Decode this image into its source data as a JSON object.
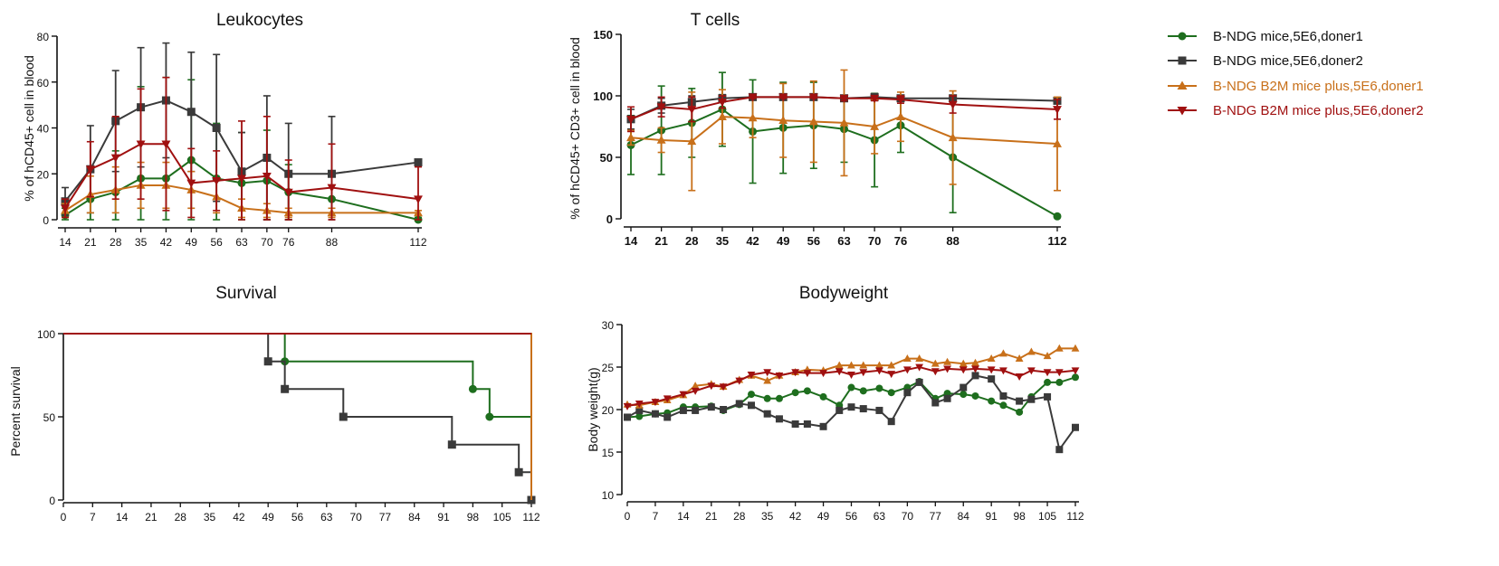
{
  "colors": {
    "green": "#1e6e1e",
    "gray": "#3a3a3a",
    "orange": "#c8701a",
    "red": "#a01010"
  },
  "legend": [
    {
      "label": "B-NDG mice,5E6,doner1",
      "color": "#1e6e1e",
      "marker": "circle",
      "text_color": "#111111"
    },
    {
      "label": "B-NDG mice,5E6,doner2",
      "color": "#3a3a3a",
      "marker": "square",
      "text_color": "#111111"
    },
    {
      "label": "B-NDG B2M mice plus,5E6,doner1",
      "color": "#c8701a",
      "marker": "triangle-up",
      "text_color": "#c8701a"
    },
    {
      "label": "B-NDG B2M mice plus,5E6,doner2",
      "color": "#a01010",
      "marker": "triangle-down",
      "text_color": "#a01010"
    }
  ],
  "chart_data": [
    {
      "type": "line",
      "title": "Leukocytes",
      "ylabel": "% of  hCD45+ cell in blood",
      "xlabel": "",
      "x_ticks": [
        14,
        21,
        28,
        35,
        42,
        49,
        56,
        63,
        70,
        76,
        88,
        112
      ],
      "ylim": [
        0,
        80
      ],
      "y_ticks": [
        0,
        20,
        40,
        60,
        80
      ],
      "series": [
        {
          "color": "#1e6e1e",
          "marker": "circle",
          "x": [
            14,
            21,
            28,
            35,
            42,
            49,
            56,
            63,
            70,
            76,
            88,
            112
          ],
          "values": [
            2,
            9,
            12,
            18,
            18,
            26,
            18,
            16,
            17,
            12,
            9,
            0
          ],
          "error": [
            3,
            12,
            18,
            40,
            44,
            35,
            24,
            22,
            22,
            12,
            6,
            1
          ]
        },
        {
          "color": "#3a3a3a",
          "marker": "square",
          "x": [
            14,
            21,
            28,
            35,
            42,
            49,
            56,
            63,
            70,
            76,
            88,
            112
          ],
          "values": [
            8,
            22,
            43,
            49,
            52,
            47,
            40,
            21,
            27,
            20,
            20,
            25
          ],
          "error": [
            6,
            19,
            22,
            26,
            25,
            26,
            32,
            17,
            27,
            22,
            25,
            1
          ]
        },
        {
          "color": "#c8701a",
          "marker": "triangle-up",
          "x": [
            14,
            21,
            28,
            35,
            42,
            49,
            56,
            63,
            70,
            76,
            88,
            112
          ],
          "values": [
            4,
            11,
            13,
            15,
            15,
            13,
            10,
            5,
            4,
            3,
            3,
            3
          ],
          "error": [
            3,
            8,
            10,
            10,
            10,
            8,
            7,
            4,
            3,
            2,
            2,
            1
          ]
        },
        {
          "color": "#a01010",
          "marker": "triangle-down",
          "x": [
            14,
            21,
            28,
            35,
            42,
            49,
            56,
            63,
            70,
            76,
            88,
            112
          ],
          "values": [
            5,
            22,
            27,
            33,
            33,
            16,
            17,
            18,
            19,
            12,
            14,
            9
          ],
          "error": [
            4,
            12,
            18,
            24,
            29,
            15,
            13,
            25,
            26,
            14,
            19,
            14
          ]
        }
      ]
    },
    {
      "type": "line",
      "title": "T cells",
      "ylabel": "% of hCD45+ CD3+ cell in blood",
      "xlabel": "",
      "x_ticks": [
        14,
        21,
        28,
        35,
        42,
        49,
        56,
        63,
        70,
        76,
        88,
        112
      ],
      "ylim": [
        0,
        150
      ],
      "y_ticks": [
        0,
        50,
        100,
        150
      ],
      "series": [
        {
          "color": "#1e6e1e",
          "marker": "circle",
          "x": [
            14,
            21,
            28,
            35,
            42,
            49,
            56,
            63,
            70,
            76,
            88,
            112
          ],
          "values": [
            60,
            72,
            78,
            89,
            71,
            74,
            76,
            73,
            64,
            76,
            50,
            2
          ],
          "error": [
            24,
            36,
            28,
            30,
            42,
            37,
            35,
            27,
            38,
            22,
            45,
            1
          ]
        },
        {
          "color": "#3a3a3a",
          "marker": "square",
          "x": [
            14,
            21,
            28,
            35,
            42,
            49,
            56,
            63,
            70,
            76,
            88,
            112
          ],
          "values": [
            81,
            92,
            95,
            98,
            99,
            99,
            99,
            98,
            99,
            98,
            98,
            96
          ],
          "error": [
            8,
            6,
            5,
            3,
            1,
            1,
            1,
            2,
            1,
            1,
            2,
            2
          ]
        },
        {
          "color": "#c8701a",
          "marker": "triangle-up",
          "x": [
            14,
            21,
            28,
            35,
            42,
            49,
            56,
            63,
            70,
            76,
            88,
            112
          ],
          "values": [
            66,
            64,
            63,
            83,
            82,
            80,
            79,
            78,
            75,
            83,
            66,
            61
          ],
          "error": [
            6,
            10,
            40,
            22,
            16,
            30,
            33,
            43,
            22,
            20,
            38,
            38
          ]
        },
        {
          "color": "#a01010",
          "marker": "triangle-down",
          "x": [
            14,
            21,
            28,
            35,
            42,
            49,
            56,
            63,
            70,
            76,
            88,
            112
          ],
          "values": [
            81,
            91,
            89,
            95,
            99,
            99,
            99,
            98,
            98,
            97,
            93,
            89
          ],
          "error": [
            10,
            8,
            10,
            5,
            1,
            1,
            1,
            2,
            2,
            3,
            7,
            8
          ]
        }
      ]
    },
    {
      "type": "line",
      "subtype": "step",
      "title": "Survival",
      "ylabel": "Percent survival",
      "xlabel": "",
      "x_ticks": [
        0,
        7,
        14,
        21,
        28,
        35,
        42,
        49,
        56,
        63,
        70,
        77,
        84,
        91,
        98,
        105,
        112
      ],
      "xlim": [
        0,
        112
      ],
      "ylim": [
        0,
        100
      ],
      "y_ticks": [
        0,
        50,
        100
      ],
      "series": [
        {
          "color": "#1e6e1e",
          "marker": "circle",
          "steps": [
            [
              0,
              100
            ],
            [
              53,
              83.3
            ],
            [
              98,
              66.7
            ],
            [
              102,
              50
            ],
            [
              112,
              0
            ]
          ]
        },
        {
          "color": "#3a3a3a",
          "marker": "square",
          "steps": [
            [
              0,
              100
            ],
            [
              49,
              83.3
            ],
            [
              53,
              66.7
            ],
            [
              67,
              50
            ],
            [
              93,
              33.3
            ],
            [
              109,
              16.7
            ],
            [
              112,
              0
            ]
          ]
        },
        {
          "color": "#c8701a",
          "marker": "triangle-up",
          "steps": [
            [
              0,
              100
            ],
            [
              112,
              0
            ]
          ]
        },
        {
          "color": "#a01010",
          "marker": "triangle-down",
          "steps": [
            [
              0,
              100
            ],
            [
              112,
              100
            ]
          ]
        }
      ]
    },
    {
      "type": "line",
      "title": "Bodyweight",
      "ylabel": "Body weight(g)",
      "xlabel": "",
      "x_ticks": [
        0,
        7,
        14,
        21,
        28,
        35,
        42,
        49,
        56,
        63,
        70,
        77,
        84,
        91,
        98,
        105,
        112
      ],
      "xlim": [
        0,
        112
      ],
      "ylim": [
        10,
        30
      ],
      "y_ticks": [
        10,
        15,
        20,
        25,
        30
      ],
      "series": [
        {
          "color": "#1e6e1e",
          "marker": "circle",
          "x": [
            0,
            3,
            7,
            10,
            14,
            17,
            21,
            24,
            28,
            31,
            35,
            38,
            42,
            45,
            49,
            53,
            56,
            59,
            63,
            66,
            70,
            73,
            77,
            80,
            84,
            87,
            91,
            94,
            98,
            101,
            105,
            108,
            112
          ],
          "values": [
            19.1,
            19.2,
            19.5,
            19.6,
            20.3,
            20.3,
            20.4,
            19.9,
            20.6,
            21.8,
            21.3,
            21.3,
            22.0,
            22.2,
            21.5,
            20.5,
            22.6,
            22.2,
            22.5,
            22.0,
            22.6,
            23.3,
            21.3,
            21.9,
            21.8,
            21.6,
            21.0,
            20.5,
            19.7,
            21.5,
            23.2,
            23.2,
            23.8
          ]
        },
        {
          "color": "#3a3a3a",
          "marker": "square",
          "x": [
            0,
            3,
            7,
            10,
            14,
            17,
            21,
            24,
            28,
            31,
            35,
            38,
            42,
            45,
            49,
            53,
            56,
            59,
            63,
            66,
            70,
            73,
            77,
            80,
            84,
            87,
            91,
            94,
            98,
            101,
            105,
            108,
            112
          ],
          "values": [
            19.1,
            19.9,
            19.5,
            19.1,
            19.9,
            19.9,
            20.3,
            20.0,
            20.7,
            20.5,
            19.5,
            18.9,
            18.3,
            18.3,
            18.0,
            19.9,
            20.3,
            20.1,
            19.9,
            18.6,
            22.0,
            23.2,
            20.8,
            21.3,
            22.6,
            24.0,
            23.6,
            21.6,
            21.0,
            21.2,
            21.5,
            15.3,
            17.9
          ]
        },
        {
          "color": "#c8701a",
          "marker": "triangle-up",
          "x": [
            0,
            3,
            7,
            10,
            14,
            17,
            21,
            24,
            28,
            31,
            35,
            38,
            42,
            45,
            49,
            53,
            56,
            59,
            63,
            66,
            70,
            73,
            77,
            80,
            84,
            87,
            91,
            94,
            98,
            101,
            105,
            108,
            112
          ],
          "values": [
            20.6,
            20.5,
            20.9,
            21.1,
            21.7,
            22.8,
            23.0,
            22.7,
            23.5,
            24.0,
            23.4,
            24.0,
            24.4,
            24.7,
            24.6,
            25.2,
            25.2,
            25.2,
            25.2,
            25.2,
            26.0,
            26.0,
            25.4,
            25.6,
            25.4,
            25.5,
            26.0,
            26.6,
            26.0,
            26.8,
            26.3,
            27.2,
            27.2
          ]
        },
        {
          "color": "#a01010",
          "marker": "triangle-down",
          "x": [
            0,
            3,
            7,
            10,
            14,
            17,
            21,
            24,
            28,
            31,
            35,
            38,
            42,
            45,
            49,
            53,
            56,
            59,
            63,
            66,
            70,
            73,
            77,
            80,
            84,
            87,
            91,
            94,
            98,
            101,
            105,
            108,
            112
          ],
          "values": [
            20.4,
            20.7,
            20.9,
            21.3,
            21.8,
            22.2,
            22.8,
            22.7,
            23.4,
            24.1,
            24.4,
            24.0,
            24.4,
            24.3,
            24.3,
            24.5,
            24.1,
            24.4,
            24.6,
            24.2,
            24.7,
            25.0,
            24.5,
            24.8,
            24.7,
            24.8,
            24.7,
            24.6,
            23.9,
            24.6,
            24.4,
            24.4,
            24.6
          ]
        }
      ]
    }
  ]
}
